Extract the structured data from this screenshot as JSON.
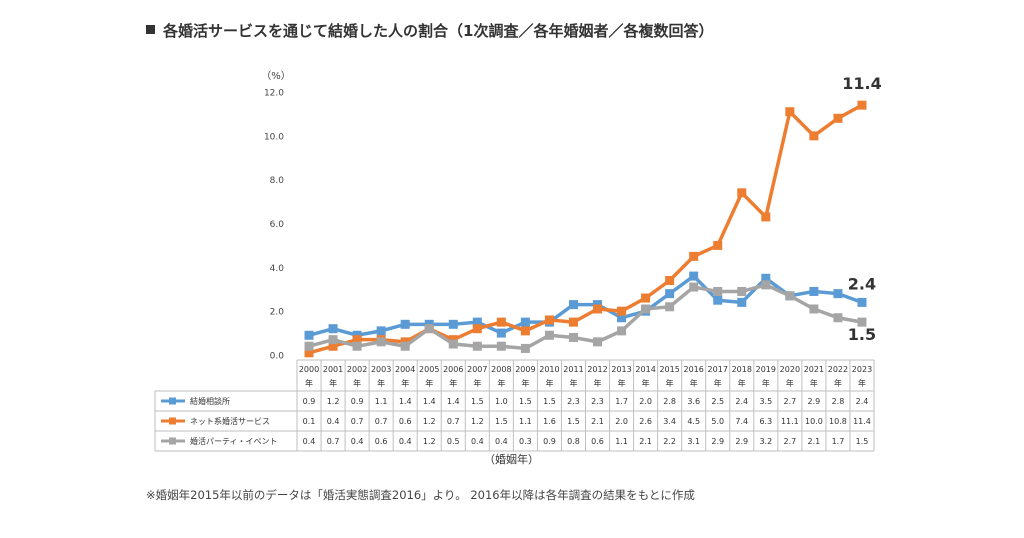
{
  "title": "各婚活サービスを通じて結婚した人の割合（1次調査／各年婚姻者／各複数回答）",
  "footnote": "※婚姻年2015年以前のデータは「婚活実態調査2016」より。 2016年以降は各年調査の結果をもとに作成",
  "colors": {
    "blue": "#5b9bd5",
    "orange": "#ed7d31",
    "gray": "#a5a5a5"
  },
  "chart_data": {
    "type": "line",
    "y_unit_label": "（%）",
    "xlabel": "（婚姻年）",
    "year_suffix": "年",
    "ylim": [
      0,
      12
    ],
    "yticks": [
      "0.0",
      "2.0",
      "4.0",
      "6.0",
      "8.0",
      "10.0",
      "12.0"
    ],
    "grid": false,
    "legend": "table-below",
    "categories": [
      "2000",
      "2001",
      "2002",
      "2003",
      "2004",
      "2005",
      "2006",
      "2007",
      "2008",
      "2009",
      "2010",
      "2011",
      "2012",
      "2013",
      "2014",
      "2015",
      "2016",
      "2017",
      "2018",
      "2019",
      "2020",
      "2021",
      "2022",
      "2023"
    ],
    "series": [
      {
        "name": "結婚相談所",
        "color": "#5b9bd5",
        "values": [
          0.9,
          1.2,
          0.9,
          1.1,
          1.4,
          1.4,
          1.4,
          1.5,
          1.0,
          1.5,
          1.5,
          2.3,
          2.3,
          1.7,
          2.0,
          2.8,
          3.6,
          2.5,
          2.4,
          3.5,
          2.7,
          2.9,
          2.8,
          2.4
        ]
      },
      {
        "name": "ネット系婚活サービス",
        "color": "#ed7d31",
        "values": [
          0.1,
          0.4,
          0.7,
          0.7,
          0.6,
          1.2,
          0.7,
          1.2,
          1.5,
          1.1,
          1.6,
          1.5,
          2.1,
          2.0,
          2.6,
          3.4,
          4.5,
          5.0,
          7.4,
          6.3,
          11.1,
          10.0,
          10.8,
          11.4
        ]
      },
      {
        "name": "婚活パーティ・イベント",
        "color": "#a5a5a5",
        "values": [
          0.4,
          0.7,
          0.4,
          0.6,
          0.4,
          1.2,
          0.5,
          0.4,
          0.4,
          0.3,
          0.9,
          0.8,
          0.6,
          1.1,
          2.1,
          2.2,
          3.1,
          2.9,
          2.9,
          3.2,
          2.7,
          2.1,
          1.7,
          1.5
        ]
      }
    ],
    "end_labels": [
      "2.4",
      "11.4",
      "1.5"
    ]
  }
}
